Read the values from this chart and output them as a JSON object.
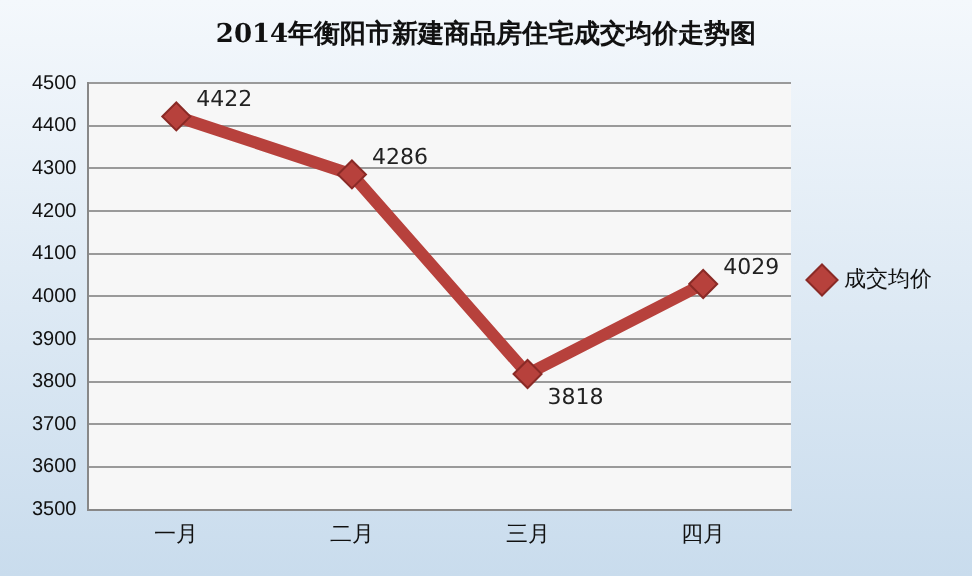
{
  "chart_data": {
    "type": "line",
    "title": "2014年衡阳市新建商品房住宅成交均价走势图",
    "categories": [
      "一月",
      "二月",
      "三月",
      "四月"
    ],
    "series": [
      {
        "name": "成交均价",
        "color": "#b7413c",
        "values": [
          4422,
          4286,
          3818,
          4029
        ]
      }
    ],
    "ylim": [
      3500,
      4500
    ],
    "yticks": [
      3500,
      3600,
      3700,
      3800,
      3900,
      4000,
      4100,
      4200,
      4300,
      4400,
      4500
    ],
    "grid": "y",
    "legend": "right",
    "marker": "diamond",
    "line_style": "solid",
    "data_labels": true
  }
}
